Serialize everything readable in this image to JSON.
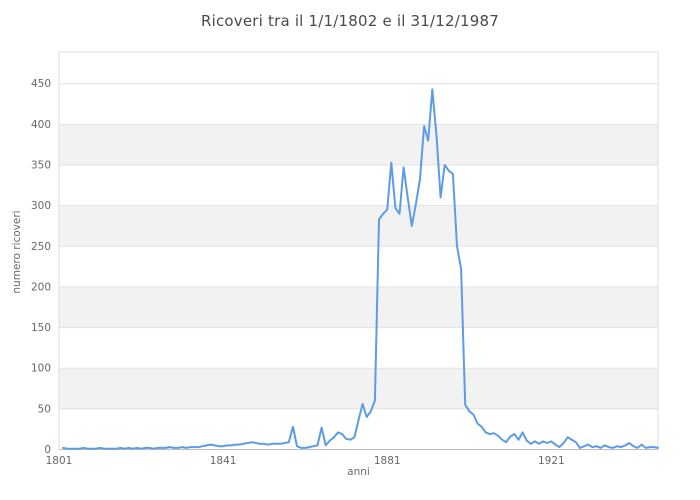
{
  "title": "Ricoveri tra il 1/1/1802 e il 31/12/1987",
  "chart_data": {
    "type": "line",
    "title": "Ricoveri tra il 1/1/1802 e il 31/12/1987",
    "xlabel": "anni",
    "ylabel": "numero ricoveri",
    "x_ticks": [
      1801,
      1841,
      1881,
      1921
    ],
    "y_ticks": [
      0,
      50,
      100,
      150,
      200,
      250,
      300,
      350,
      400,
      450
    ],
    "xlim": [
      1801,
      1947
    ],
    "ylim": [
      0,
      489
    ],
    "grid": true,
    "legend_position": "none",
    "alternating_band_ranges": [
      [
        50,
        100
      ],
      [
        150,
        200
      ],
      [
        250,
        300
      ],
      [
        350,
        400
      ]
    ],
    "series": [
      {
        "name": "numero ricoveri",
        "x": [
          1802,
          1803,
          1804,
          1805,
          1806,
          1807,
          1808,
          1809,
          1810,
          1811,
          1812,
          1813,
          1814,
          1815,
          1816,
          1817,
          1818,
          1819,
          1820,
          1821,
          1822,
          1823,
          1824,
          1825,
          1826,
          1827,
          1828,
          1829,
          1830,
          1831,
          1832,
          1833,
          1834,
          1835,
          1836,
          1837,
          1838,
          1839,
          1840,
          1841,
          1842,
          1843,
          1844,
          1845,
          1846,
          1847,
          1848,
          1849,
          1850,
          1851,
          1852,
          1853,
          1854,
          1855,
          1856,
          1857,
          1858,
          1859,
          1860,
          1861,
          1862,
          1863,
          1864,
          1865,
          1866,
          1867,
          1868,
          1869,
          1870,
          1871,
          1872,
          1873,
          1874,
          1875,
          1876,
          1877,
          1878,
          1879,
          1880,
          1881,
          1882,
          1883,
          1884,
          1885,
          1886,
          1887,
          1888,
          1889,
          1890,
          1891,
          1892,
          1893,
          1894,
          1895,
          1896,
          1897,
          1898,
          1899,
          1900,
          1901,
          1902,
          1903,
          1904,
          1905,
          1906,
          1907,
          1908,
          1909,
          1910,
          1911,
          1912,
          1913,
          1914,
          1915,
          1916,
          1917,
          1918,
          1919,
          1920,
          1921,
          1922,
          1923,
          1924,
          1925,
          1926,
          1927,
          1928,
          1929,
          1930,
          1931,
          1932,
          1933,
          1934,
          1935,
          1936,
          1937,
          1938,
          1939,
          1940,
          1941,
          1942,
          1943,
          1944,
          1945,
          1946,
          1947
        ],
        "values": [
          2,
          1,
          1,
          1,
          1,
          2,
          1,
          1,
          1,
          2,
          1,
          1,
          1,
          1,
          2,
          1,
          2,
          1,
          2,
          1,
          2,
          2,
          1,
          2,
          2,
          2,
          3,
          2,
          2,
          3,
          2,
          3,
          3,
          3,
          4,
          5,
          6,
          5,
          4,
          4,
          5,
          5,
          6,
          6,
          7,
          8,
          9,
          8,
          7,
          7,
          6,
          7,
          7,
          7,
          8,
          9,
          28,
          4,
          2,
          2,
          3,
          4,
          5,
          27,
          5,
          11,
          15,
          21,
          19,
          13,
          12,
          15,
          36,
          56,
          40,
          47,
          60,
          283,
          290,
          295,
          353,
          297,
          290,
          347,
          310,
          275,
          302,
          333,
          398,
          380,
          443,
          386,
          310,
          350,
          343,
          339,
          250,
          222,
          55,
          47,
          43,
          32,
          28,
          21,
          19,
          20,
          17,
          12,
          9,
          16,
          19,
          12,
          21,
          11,
          7,
          10,
          7,
          10,
          8,
          10,
          6,
          3,
          8,
          15,
          12,
          9,
          2,
          4,
          6,
          3,
          4,
          2,
          5,
          3,
          2,
          4,
          3,
          5,
          8,
          4,
          2,
          6,
          2,
          3,
          3,
          2
        ]
      }
    ]
  },
  "colors": {
    "line": "#5c9ce5",
    "band": "#f2f2f2",
    "grid": "#e3e3e3",
    "border": "#dcdcdc",
    "axis_line": "#bfbfbf",
    "title_text": "#4a4a4a",
    "tick_text": "#696969",
    "background": "#ffffff"
  }
}
